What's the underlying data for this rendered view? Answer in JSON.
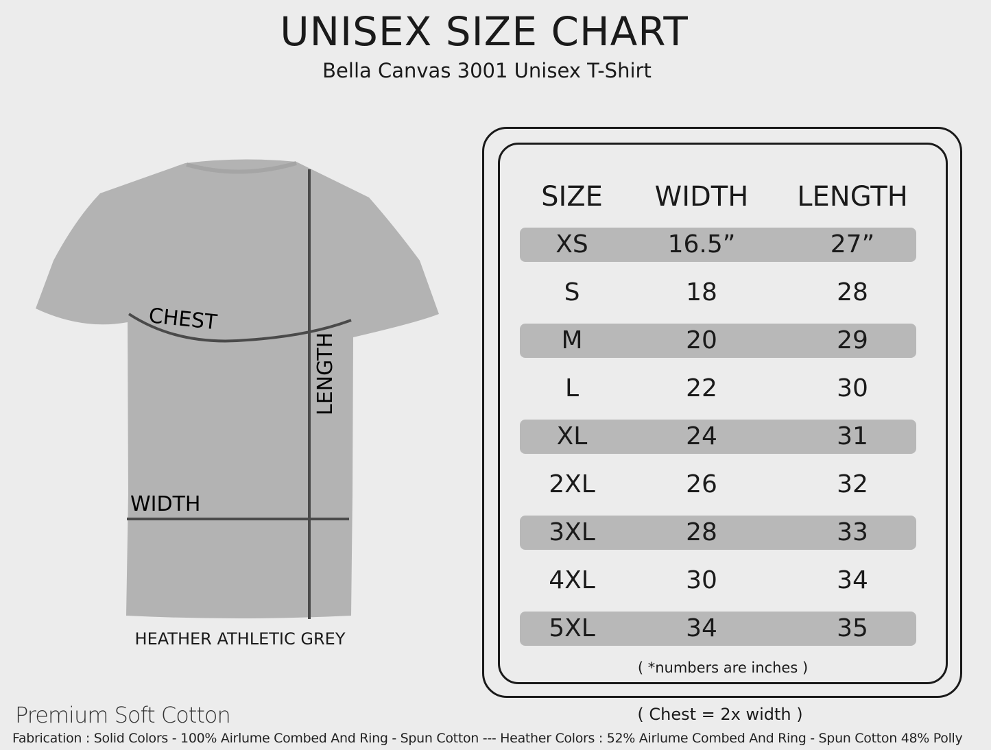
{
  "title": "UNISEX SIZE CHART",
  "subtitle": "Bella Canvas 3001 Unisex T-Shirt",
  "shirt": {
    "color_name": "HEATHER ATHLETIC GREY",
    "labels": {
      "chest": "CHEST",
      "length": "LENGTH",
      "width": "WIDTH"
    },
    "fill_color": "#b3b3b3",
    "line_color": "#4a4a4a"
  },
  "table": {
    "headers": [
      "SIZE",
      "WIDTH",
      "LENGTH"
    ],
    "rows": [
      [
        "XS",
        "16.5”",
        "27”"
      ],
      [
        "S",
        "18",
        "28"
      ],
      [
        "M",
        "20",
        "29"
      ],
      [
        "L",
        "22",
        "30"
      ],
      [
        "XL",
        "24",
        "31"
      ],
      [
        "2XL",
        "26",
        "32"
      ],
      [
        "3XL",
        "28",
        "33"
      ],
      [
        "4XL",
        "30",
        "34"
      ],
      [
        "5XL",
        "34",
        "35"
      ]
    ],
    "stripe_color": "#b8b8b8",
    "note": "( *numbers are inches )"
  },
  "chest_note": "( Chest = 2x width )",
  "premium": "Premium Soft Cotton",
  "fabrication": "Fabrication : Solid Colors - 100% Airlume Combed And Ring - Spun Cotton --- Heather Colors : 52% Airlume Combed And Ring - Spun Cotton 48% Polly"
}
